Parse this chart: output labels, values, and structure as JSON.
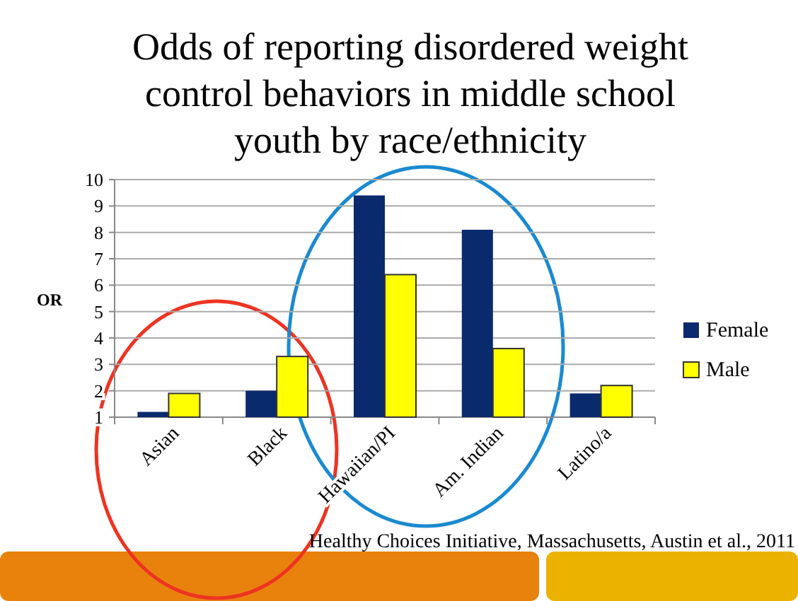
{
  "chart_data": {
    "type": "bar",
    "title": "Odds of reporting disordered weight control behaviors in middle school youth by race/ethnicity",
    "ylabel": "OR",
    "categories": [
      "Asian",
      "Black",
      "Hawaiian/PI",
      "Am. Indian",
      "Latino/a"
    ],
    "series": [
      {
        "name": "Female",
        "color": "#0a2a6e",
        "values": [
          1.2,
          2.0,
          9.4,
          8.1,
          1.9
        ]
      },
      {
        "name": "Male",
        "color": "#ffff00",
        "values": [
          1.9,
          3.3,
          6.4,
          3.6,
          2.2
        ]
      }
    ],
    "ylim": [
      1,
      10
    ],
    "yticks": [
      1,
      2,
      3,
      4,
      5,
      6,
      7,
      8,
      9,
      10
    ],
    "grid": "y",
    "legend": "right",
    "annotations": [
      "Healthy Choices Initiative, Massachusetts, Austin et al., 2011"
    ]
  }
}
